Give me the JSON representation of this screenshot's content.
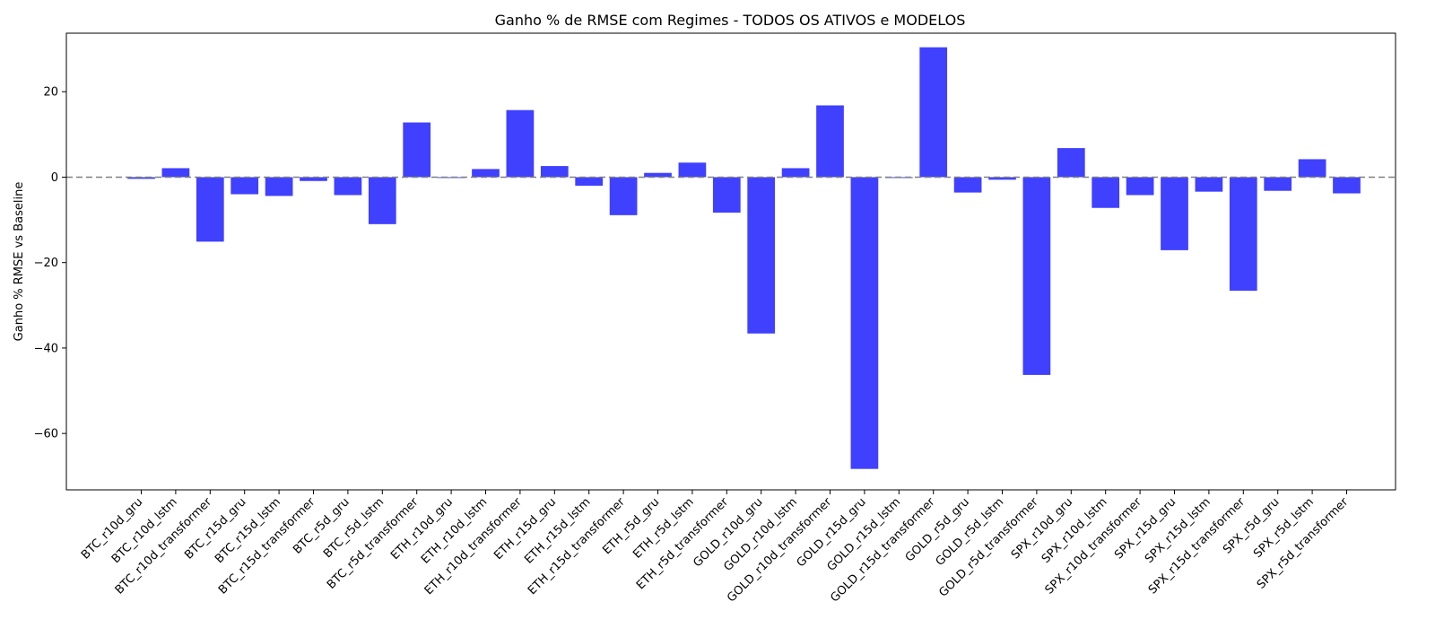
{
  "chart_data": {
    "type": "bar",
    "title": "Ganho % de RMSE com Regimes - TODOS OS ATIVOS e MODELOS",
    "xlabel": "",
    "ylabel": "Ganho % RMSE vs Baseline",
    "ylim": [
      -73.2,
      33.7
    ],
    "yticks": [
      -60,
      -40,
      -20,
      0,
      20
    ],
    "ytick_labels": [
      "−60",
      "−40",
      "−20",
      "0",
      "20"
    ],
    "grid": false,
    "reference_line": {
      "y": 0,
      "style": "dashed",
      "color": "#808080"
    },
    "bar_color": "#4040ff",
    "categories": [
      "BTC_r10d_gru",
      "BTC_r10d_lstm",
      "BTC_r10d_transformer",
      "BTC_r15d_gru",
      "BTC_r15d_lstm",
      "BTC_r15d_transformer",
      "BTC_r5d_gru",
      "BTC_r5d_lstm",
      "BTC_r5d_transformer",
      "ETH_r10d_gru",
      "ETH_r10d_lstm",
      "ETH_r10d_transformer",
      "ETH_r15d_gru",
      "ETH_r15d_lstm",
      "ETH_r15d_transformer",
      "ETH_r5d_gru",
      "ETH_r5d_lstm",
      "ETH_r5d_transformer",
      "GOLD_r10d_gru",
      "GOLD_r10d_lstm",
      "GOLD_r10d_transformer",
      "GOLD_r15d_gru",
      "GOLD_r15d_lstm",
      "GOLD_r15d_transformer",
      "GOLD_r5d_gru",
      "GOLD_r5d_lstm",
      "GOLD_r5d_transformer",
      "SPX_r10d_gru",
      "SPX_r10d_lstm",
      "SPX_r10d_transformer",
      "SPX_r15d_gru",
      "SPX_r15d_lstm",
      "SPX_r15d_transformer",
      "SPX_r5d_gru",
      "SPX_r5d_lstm",
      "SPX_r5d_transformer"
    ],
    "values": [
      -0.4,
      2.1,
      -15.1,
      -4.0,
      -4.4,
      -0.9,
      -4.2,
      -11.0,
      12.8,
      -0.2,
      1.9,
      15.7,
      2.6,
      -2.0,
      -8.9,
      1.0,
      3.4,
      -8.3,
      -36.6,
      2.1,
      16.8,
      -68.3,
      -0.2,
      30.4,
      -3.6,
      -0.6,
      -46.3,
      6.8,
      -7.2,
      -4.2,
      -17.1,
      -3.4,
      -26.6,
      -3.2,
      4.2,
      -3.8
    ]
  }
}
